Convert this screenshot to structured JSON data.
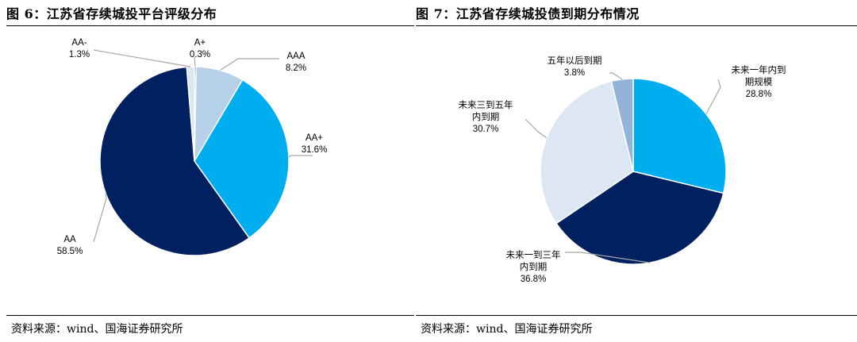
{
  "left_panel": {
    "title": "图 6：江苏省存续城投平台评级分布",
    "source": "资料来源：wind、国海证券研究所"
  },
  "right_panel": {
    "title": "图 7：江苏省存续城投债到期分布情况",
    "source": "资料来源：wind、国海证券研究所"
  },
  "chart_data": [
    {
      "type": "pie",
      "title": "图 6：江苏省存续城投平台评级分布",
      "unit": "%",
      "slices": [
        {
          "label": "A+",
          "value": 0.3,
          "display": "0.3%",
          "color": "#2e3e8f"
        },
        {
          "label": "AAA",
          "value": 8.2,
          "display": "8.2%",
          "color": "#b7d0ea"
        },
        {
          "label": "AA+",
          "value": 31.6,
          "display": "31.6%",
          "color": "#00aeef"
        },
        {
          "label": "AA",
          "value": 58.5,
          "display": "58.5%",
          "color": "#002060"
        },
        {
          "label": "AA-",
          "value": 1.3,
          "display": "1.3%",
          "color": "#dbe6f3"
        }
      ]
    },
    {
      "type": "pie",
      "title": "图 7：江苏省存续城投债到期分布情况",
      "unit": "%",
      "slices": [
        {
          "label": "未来一年内到期规模",
          "lines": [
            "未来一年内到",
            "期规模"
          ],
          "value": 28.8,
          "display": "28.8%",
          "color": "#00aeef"
        },
        {
          "label": "未来一到三年内到期",
          "lines": [
            "未来一到三年",
            "内到期"
          ],
          "value": 36.8,
          "display": "36.8%",
          "color": "#002060"
        },
        {
          "label": "未来三到五年内到期",
          "lines": [
            "未来三到五年",
            "内到期"
          ],
          "value": 30.7,
          "display": "30.7%",
          "color": "#dde6f3"
        },
        {
          "label": "五年以后到期",
          "lines": [
            "五年以后到期"
          ],
          "value": 3.8,
          "display": "3.8%",
          "color": "#94b3d8"
        }
      ]
    }
  ]
}
